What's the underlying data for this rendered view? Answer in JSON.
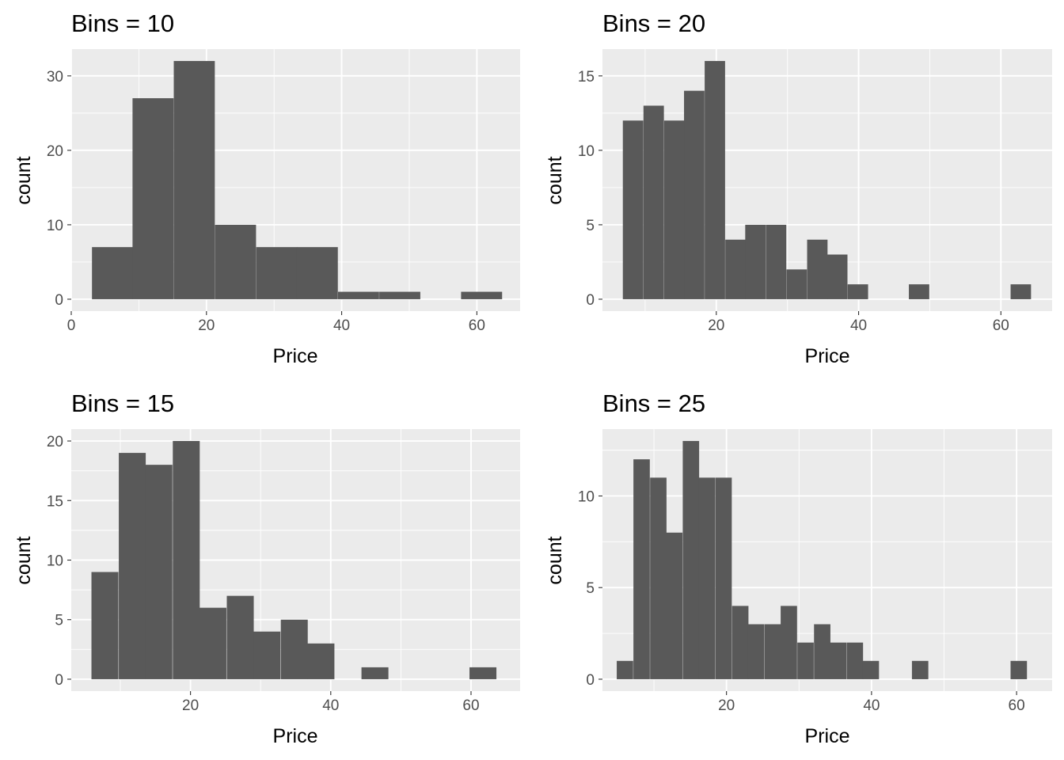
{
  "figure": {
    "panel_background": "#ebebeb",
    "grid_major_color": "#ffffff",
    "bar_color": "#595959",
    "tick_color": "#333333",
    "tick_label_color": "#4d4d4d"
  },
  "chart_data": [
    {
      "type": "bar",
      "title": "Bins = 10",
      "xlabel": "Price",
      "ylabel": "count",
      "xlim": [
        0,
        66.4
      ],
      "ylim": [
        -1.6,
        33.6
      ],
      "x_ticks": [
        0,
        20,
        40,
        60
      ],
      "y_ticks": [
        0,
        10,
        20,
        30
      ],
      "grid": true,
      "bin_width": 6.07,
      "bin_centers": [
        6.1,
        12.1,
        18.2,
        24.3,
        30.4,
        36.4,
        42.5,
        48.6,
        54.6,
        60.7
      ],
      "values": [
        7,
        27,
        32,
        10,
        7,
        7,
        1,
        1,
        0,
        1
      ]
    },
    {
      "type": "bar",
      "title": "Bins = 20",
      "xlabel": "Price",
      "ylabel": "count",
      "xlim": [
        4.0,
        67.2
      ],
      "ylim": [
        -0.8,
        16.8
      ],
      "x_ticks": [
        20,
        40,
        60
      ],
      "y_ticks": [
        0,
        5,
        10,
        15
      ],
      "grid": true,
      "bin_width": 2.87,
      "bin_centers": [
        8.3,
        11.2,
        14.1,
        16.9,
        19.8,
        22.7,
        25.5,
        28.4,
        31.3,
        34.2,
        37.0,
        39.9,
        42.8,
        45.6,
        48.5,
        51.4,
        54.2,
        57.1,
        60.0,
        62.8
      ],
      "values": [
        12,
        13,
        12,
        14,
        16,
        4,
        5,
        5,
        2,
        4,
        3,
        1,
        0,
        0,
        1,
        0,
        0,
        0,
        0,
        1
      ]
    },
    {
      "type": "bar",
      "title": "Bins = 15",
      "xlabel": "Price",
      "ylabel": "count",
      "xlim": [
        3.0,
        67.0
      ],
      "ylim": [
        -1.0,
        21.0
      ],
      "x_ticks": [
        20,
        40,
        60
      ],
      "y_ticks": [
        0,
        5,
        10,
        15,
        20
      ],
      "grid": true,
      "bin_width": 3.84,
      "bin_centers": [
        7.8,
        11.7,
        15.5,
        19.4,
        23.2,
        27.1,
        30.9,
        34.8,
        38.6,
        42.5,
        46.3,
        50.2,
        54.0,
        57.9,
        61.7
      ],
      "values": [
        9,
        19,
        18,
        20,
        6,
        7,
        4,
        5,
        3,
        0,
        1,
        0,
        0,
        0,
        1
      ]
    },
    {
      "type": "bar",
      "title": "Bins = 25",
      "xlabel": "Price",
      "ylabel": "count",
      "xlim": [
        2.9,
        64.9
      ],
      "ylim": [
        -0.65,
        13.65
      ],
      "x_ticks": [
        20,
        40,
        60
      ],
      "y_ticks": [
        0,
        5,
        10
      ],
      "grid": true,
      "bin_width": 2.26,
      "bin_centers": [
        6.0,
        8.3,
        10.6,
        12.8,
        15.1,
        17.3,
        19.6,
        21.9,
        24.1,
        26.4,
        28.6,
        30.9,
        33.2,
        35.4,
        37.7,
        39.9,
        42.2,
        44.5,
        46.7,
        49.0,
        51.2,
        53.5,
        55.8,
        58.0,
        60.3
      ],
      "values": [
        1,
        12,
        11,
        8,
        13,
        11,
        11,
        4,
        3,
        3,
        4,
        2,
        3,
        2,
        2,
        1,
        0,
        0,
        1,
        0,
        0,
        0,
        0,
        0,
        1
      ]
    }
  ]
}
